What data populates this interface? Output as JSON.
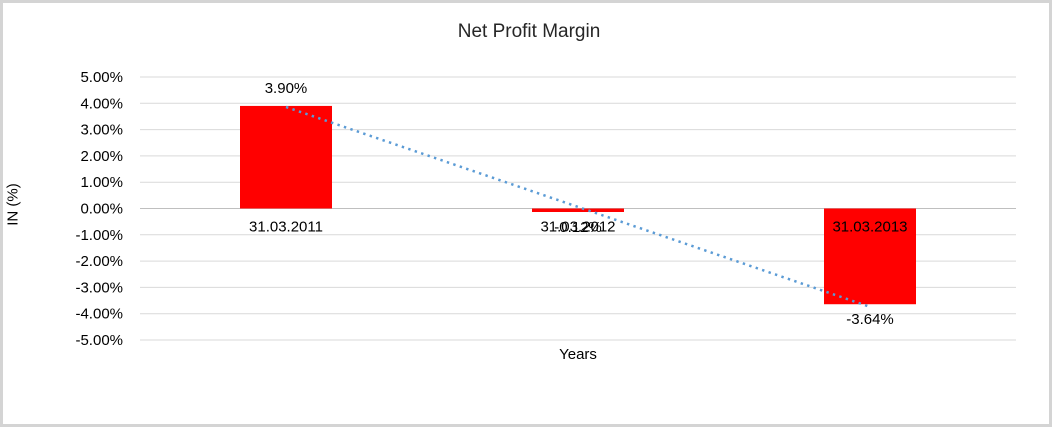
{
  "chart_data": {
    "type": "bar",
    "title": "Net Profit Margin",
    "categories": [
      "31.03.2011",
      "31.03.2012",
      "31.03.2013"
    ],
    "values": [
      3.9,
      -0.12,
      -3.64
    ],
    "data_labels": [
      "3.90%",
      "-0.12%",
      "-3.64%"
    ],
    "xlabel": "Years",
    "ylabel": "IN (%)",
    "ylim": [
      -5,
      5
    ],
    "ytick_step": 1,
    "ytick_labels": [
      "5.00%",
      "4.00%",
      "3.00%",
      "2.00%",
      "1.00%",
      "0.00%",
      "-1.00%",
      "-2.00%",
      "-3.00%",
      "-4.00%",
      "-5.00%"
    ],
    "grid": true,
    "legend": "none",
    "bar_color": "#ff0000",
    "gridline_color": "#d9d9d9",
    "zero_axis_color": "#bfbfbf",
    "trendline": {
      "type": "linear",
      "style": "dotted",
      "color": "#5b9bd5",
      "start_value": 3.86,
      "end_value": -3.74
    }
  }
}
